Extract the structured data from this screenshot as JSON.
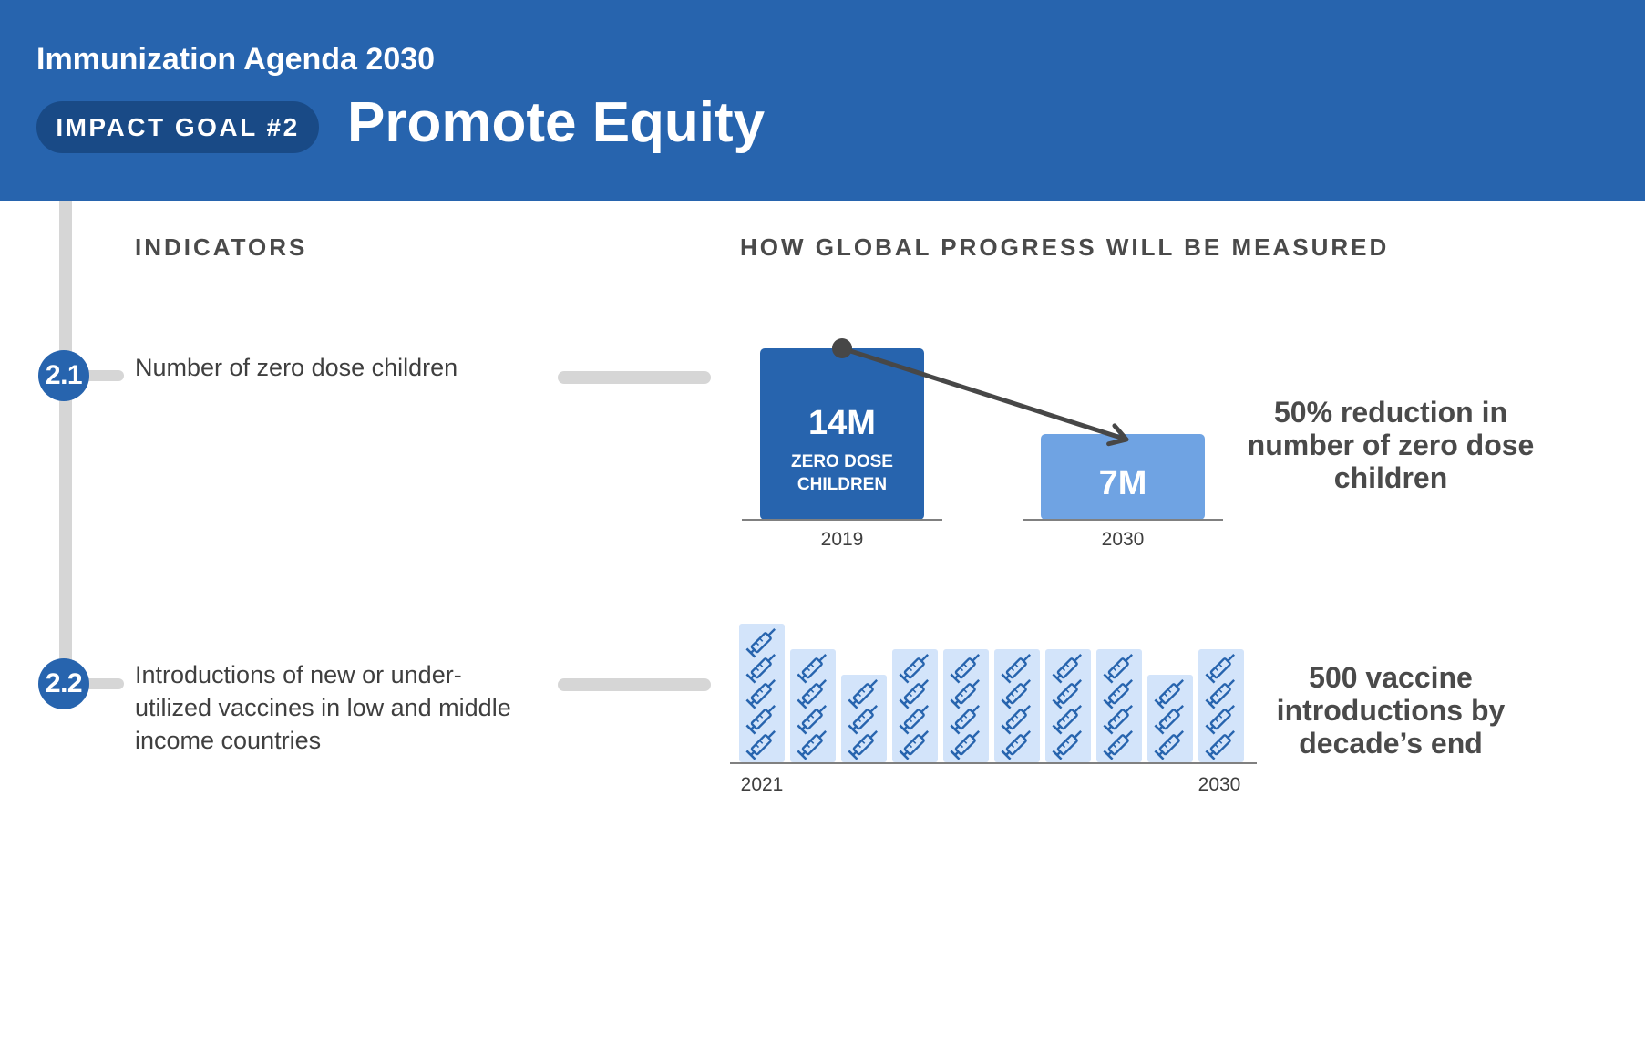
{
  "header": {
    "agenda_title": "Immunization Agenda 2030",
    "goal_label": "IMPACT GOAL #2",
    "title": "Promote Equity"
  },
  "columns": {
    "indicators": "INDICATORS",
    "measured": "HOW GLOBAL PROGRESS WILL BE MEASURED"
  },
  "indicators": [
    {
      "number": "2.1",
      "text": "Number of zero dose children",
      "result": "50% reduction in number of zero dose children"
    },
    {
      "number": "2.2",
      "text": "Introductions of new or under-utilized vaccines in low and middle income countries",
      "result": "500 vaccine introductions by decade’s end"
    }
  ],
  "chart_data": [
    {
      "type": "bar",
      "categories": [
        "2019",
        "2030"
      ],
      "values": [
        14,
        7
      ],
      "value_labels": [
        "14M",
        "7M"
      ],
      "bar_sublabel": "ZERO DOSE CHILDREN",
      "unit": "M",
      "ylim": [
        0,
        14
      ],
      "colors": [
        "#2764AE",
        "#6FA3E3"
      ],
      "annotation": "arrow from 2019 bar top to 2030 bar top"
    },
    {
      "type": "bar",
      "x_start_label": "2021",
      "x_end_label": "2030",
      "values": [
        5,
        4,
        3,
        4,
        4,
        4,
        4,
        4,
        3,
        4
      ],
      "icon": "syringe-icon",
      "ylim": [
        0,
        5
      ],
      "bar_color": "#D3E4FA",
      "icon_color": "#2764AE"
    }
  ]
}
